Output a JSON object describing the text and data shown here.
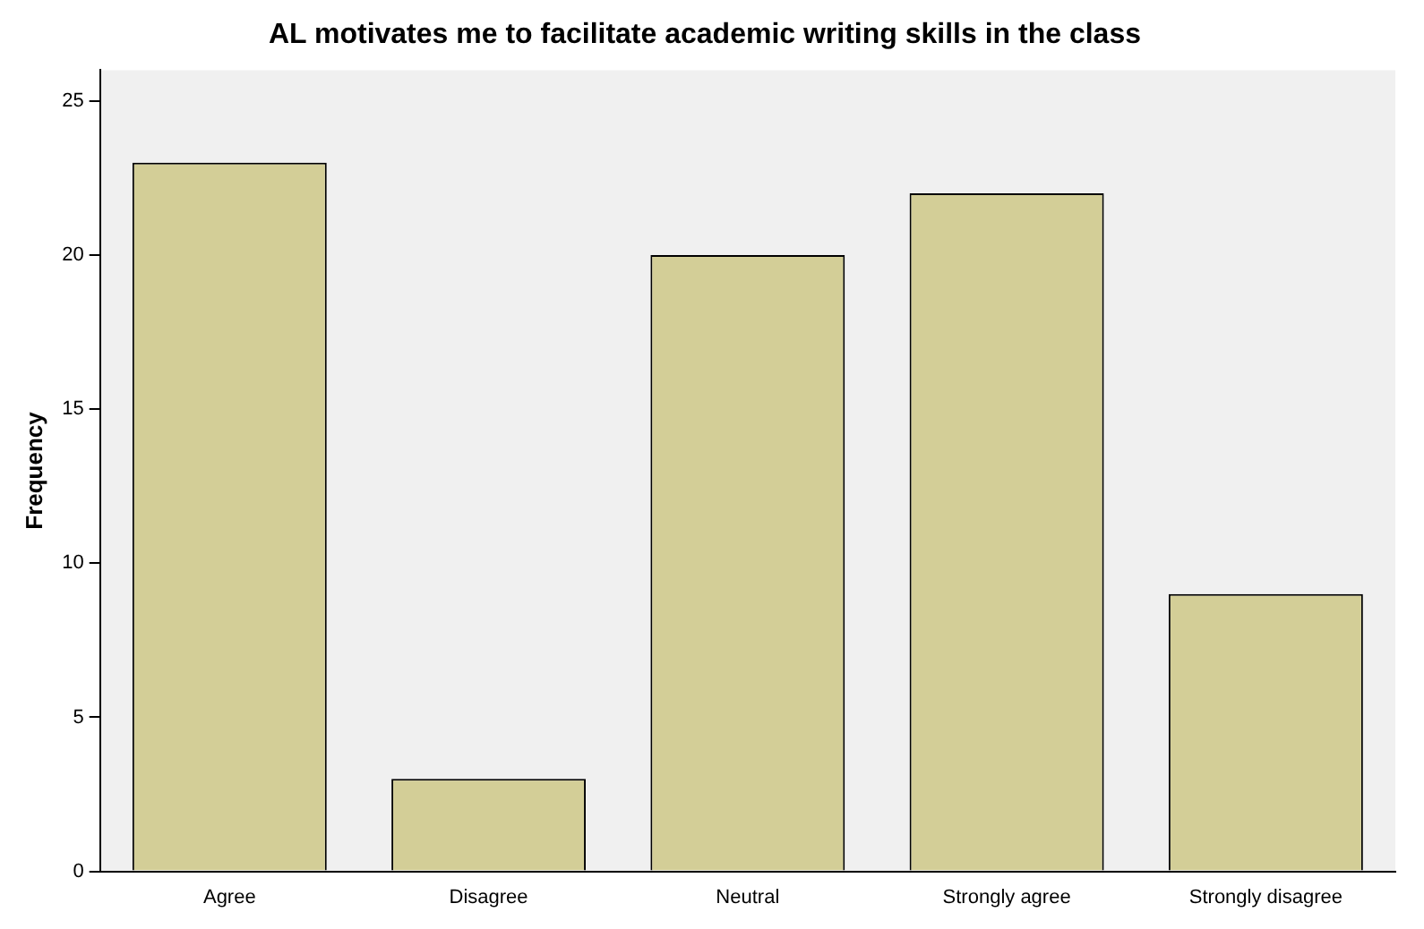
{
  "chart_data": {
    "type": "bar",
    "title": "AL motivates me to facilitate academic writing skills in the class",
    "ylabel": "Frequency",
    "categories": [
      "Agree",
      "Disagree",
      "Neutral",
      "Strongly agree",
      "Strongly disagree"
    ],
    "values": [
      23,
      3,
      20,
      22,
      9
    ],
    "color": "#d3ce97",
    "ylim": [
      0,
      26
    ],
    "yticks": [
      0,
      5,
      10,
      15,
      20,
      25
    ],
    "grid": false,
    "legend": false
  }
}
